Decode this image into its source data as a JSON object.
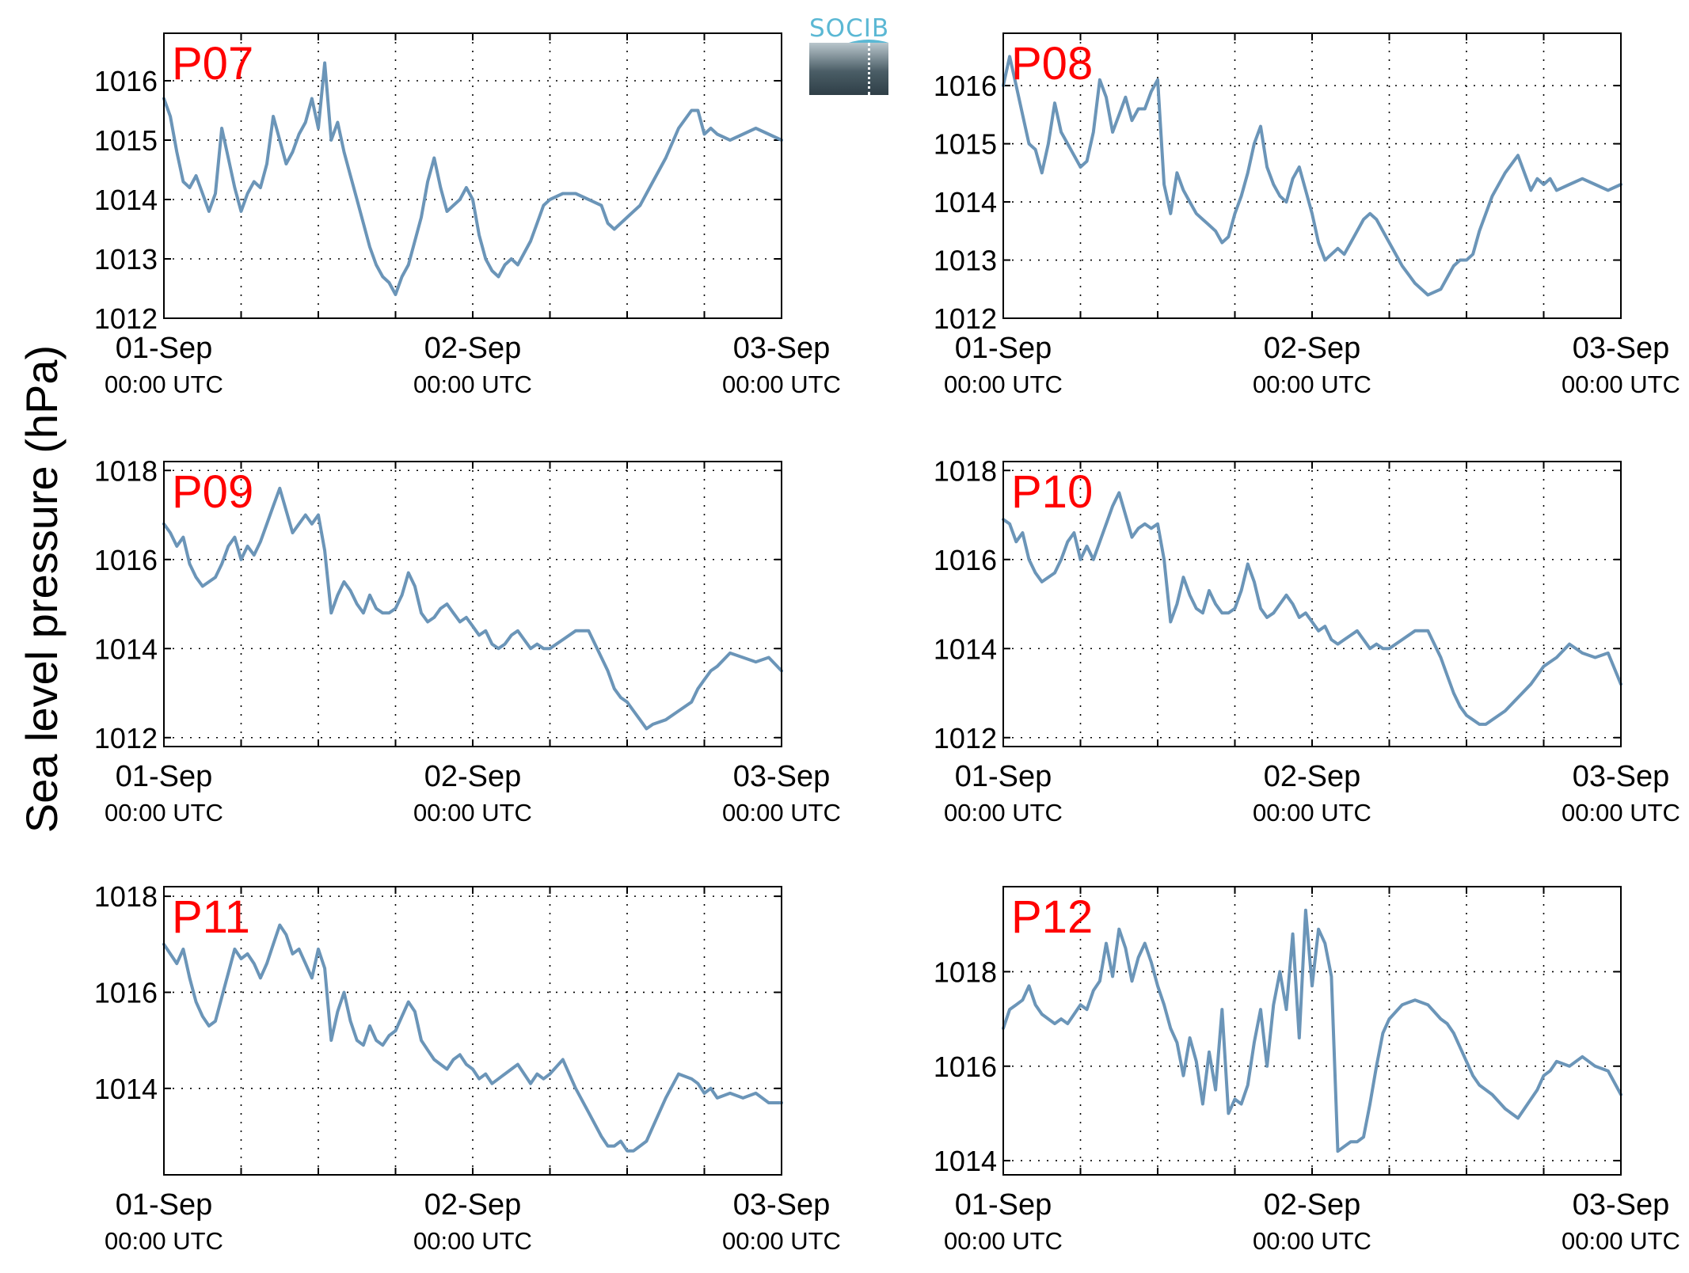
{
  "figure": {
    "ylabel": "Sea level pressure (hPa)",
    "logo_text": "SOCIB",
    "colors": {
      "line": "#6b95b8",
      "panel_label": "#ff0000",
      "axis": "#000000",
      "grid": "#000000"
    }
  },
  "chart_data": [
    {
      "type": "line",
      "title": "P07",
      "x_tick_labels": [
        [
          "01-Sep",
          "00:00 UTC"
        ],
        [
          "02-Sep",
          "00:00 UTC"
        ],
        [
          "03-Sep",
          "00:00 UTC"
        ]
      ],
      "x_range_hours": [
        0,
        48
      ],
      "ylim": [
        1012,
        1016.8
      ],
      "yticks": [
        1012,
        1013,
        1014,
        1015,
        1016
      ],
      "grid": true,
      "x_hours": [
        0,
        0.5,
        1,
        1.5,
        2,
        2.5,
        3,
        3.5,
        4,
        4.5,
        5,
        5.5,
        6,
        6.5,
        7,
        7.5,
        8,
        8.5,
        9,
        9.5,
        10,
        10.5,
        11,
        11.5,
        12,
        12.5,
        13,
        13.5,
        14,
        14.5,
        15,
        15.5,
        16,
        16.5,
        17,
        17.5,
        18,
        18.5,
        19,
        19.5,
        20,
        20.5,
        21,
        21.5,
        22,
        22.5,
        23,
        23.5,
        24,
        24.5,
        25,
        25.5,
        26,
        26.5,
        27,
        27.5,
        28,
        28.5,
        29,
        29.5,
        30,
        31,
        32,
        33,
        34,
        34.5,
        35,
        35.5,
        36,
        36.5,
        37,
        38,
        39,
        40,
        41,
        41.5,
        42,
        42.5,
        43,
        44,
        45,
        46,
        47,
        48
      ],
      "values": [
        1015.7,
        1015.4,
        1014.8,
        1014.3,
        1014.2,
        1014.4,
        1014.1,
        1013.8,
        1014.1,
        1015.2,
        1014.7,
        1014.2,
        1013.8,
        1014.1,
        1014.3,
        1014.2,
        1014.6,
        1015.4,
        1015.0,
        1014.6,
        1014.8,
        1015.1,
        1015.3,
        1015.7,
        1015.2,
        1016.3,
        1015.0,
        1015.3,
        1014.8,
        1014.4,
        1014.0,
        1013.6,
        1013.2,
        1012.9,
        1012.7,
        1012.6,
        1012.4,
        1012.7,
        1012.9,
        1013.3,
        1013.7,
        1014.3,
        1014.7,
        1014.2,
        1013.8,
        1013.9,
        1014.0,
        1014.2,
        1014.0,
        1013.4,
        1013.0,
        1012.8,
        1012.7,
        1012.9,
        1013.0,
        1012.9,
        1013.1,
        1013.3,
        1013.6,
        1013.9,
        1014.0,
        1014.1,
        1014.1,
        1014.0,
        1013.9,
        1013.6,
        1013.5,
        1013.6,
        1013.7,
        1013.8,
        1013.9,
        1014.3,
        1014.7,
        1015.2,
        1015.5,
        1015.5,
        1015.1,
        1015.2,
        1015.1,
        1015.0,
        1015.1,
        1015.2,
        1015.1,
        1015.0
      ]
    },
    {
      "type": "line",
      "title": "P08",
      "x_tick_labels": [
        [
          "01-Sep",
          "00:00 UTC"
        ],
        [
          "02-Sep",
          "00:00 UTC"
        ],
        [
          "03-Sep",
          "00:00 UTC"
        ]
      ],
      "x_range_hours": [
        0,
        48
      ],
      "ylim": [
        1012,
        1016.9
      ],
      "yticks": [
        1012,
        1013,
        1014,
        1015,
        1016
      ],
      "grid": true,
      "x_hours": [
        0,
        0.5,
        1,
        1.5,
        2,
        2.5,
        3,
        3.5,
        4,
        4.5,
        5,
        5.5,
        6,
        6.5,
        7,
        7.5,
        8,
        8.5,
        9,
        9.5,
        10,
        10.5,
        11,
        11.5,
        12,
        12.5,
        13,
        13.5,
        14,
        14.5,
        15,
        15.5,
        16,
        16.5,
        17,
        17.5,
        18,
        18.5,
        19,
        19.5,
        20,
        20.5,
        21,
        21.5,
        22,
        22.5,
        23,
        23.5,
        24,
        24.5,
        25,
        25.5,
        26,
        26.5,
        27,
        27.5,
        28,
        28.5,
        29,
        29.5,
        30,
        31,
        32,
        33,
        34,
        34.5,
        35,
        35.5,
        36,
        36.5,
        37,
        37.5,
        38,
        39,
        40,
        41,
        41.5,
        42,
        42.5,
        43,
        44,
        45,
        46,
        47,
        48
      ],
      "values": [
        1016.0,
        1016.5,
        1016.0,
        1015.5,
        1015.0,
        1014.9,
        1014.5,
        1015.0,
        1015.7,
        1015.2,
        1015.0,
        1014.8,
        1014.6,
        1014.7,
        1015.2,
        1016.1,
        1015.8,
        1015.2,
        1015.5,
        1015.8,
        1015.4,
        1015.6,
        1015.6,
        1015.9,
        1016.1,
        1014.3,
        1013.8,
        1014.5,
        1014.2,
        1014.0,
        1013.8,
        1013.7,
        1013.6,
        1013.5,
        1013.3,
        1013.4,
        1013.8,
        1014.1,
        1014.5,
        1015.0,
        1015.3,
        1014.6,
        1014.3,
        1014.1,
        1014.0,
        1014.4,
        1014.6,
        1014.2,
        1013.8,
        1013.3,
        1013.0,
        1013.1,
        1013.2,
        1013.1,
        1013.3,
        1013.5,
        1013.7,
        1013.8,
        1013.7,
        1013.5,
        1013.3,
        1012.9,
        1012.6,
        1012.4,
        1012.5,
        1012.7,
        1012.9,
        1013.0,
        1013.0,
        1013.1,
        1013.5,
        1013.8,
        1014.1,
        1014.5,
        1014.8,
        1014.2,
        1014.4,
        1014.3,
        1014.4,
        1014.2,
        1014.3,
        1014.4,
        1014.3,
        1014.2,
        1014.3
      ]
    },
    {
      "type": "line",
      "title": "P09",
      "x_tick_labels": [
        [
          "01-Sep",
          "00:00 UTC"
        ],
        [
          "02-Sep",
          "00:00 UTC"
        ],
        [
          "03-Sep",
          "00:00 UTC"
        ]
      ],
      "x_range_hours": [
        0,
        48
      ],
      "ylim": [
        1011.8,
        1018.2
      ],
      "yticks": [
        1012,
        1014,
        1016,
        1018
      ],
      "grid": true,
      "x_hours": [
        0,
        0.5,
        1,
        1.5,
        2,
        2.5,
        3,
        3.5,
        4,
        4.5,
        5,
        5.5,
        6,
        6.5,
        7,
        7.5,
        8,
        8.5,
        9,
        9.5,
        10,
        10.5,
        11,
        11.5,
        12,
        12.5,
        13,
        13.5,
        14,
        14.5,
        15,
        15.5,
        16,
        16.5,
        17,
        17.5,
        18,
        18.5,
        19,
        19.5,
        20,
        20.5,
        21,
        21.5,
        22,
        22.5,
        23,
        23.5,
        24,
        24.5,
        25,
        25.5,
        26,
        26.5,
        27,
        27.5,
        28,
        28.5,
        29,
        29.5,
        30,
        31,
        32,
        33,
        34,
        34.5,
        35,
        35.5,
        36,
        36.5,
        37,
        37.5,
        38,
        39,
        40,
        41,
        41.5,
        42,
        42.5,
        43,
        44,
        45,
        46,
        47,
        48
      ],
      "values": [
        1016.8,
        1016.6,
        1016.3,
        1016.5,
        1015.9,
        1015.6,
        1015.4,
        1015.5,
        1015.6,
        1015.9,
        1016.3,
        1016.5,
        1016.0,
        1016.3,
        1016.1,
        1016.4,
        1016.8,
        1017.2,
        1017.6,
        1017.1,
        1016.6,
        1016.8,
        1017.0,
        1016.8,
        1017.0,
        1016.2,
        1014.8,
        1015.2,
        1015.5,
        1015.3,
        1015.0,
        1014.8,
        1015.2,
        1014.9,
        1014.8,
        1014.8,
        1014.9,
        1015.2,
        1015.7,
        1015.4,
        1014.8,
        1014.6,
        1014.7,
        1014.9,
        1015.0,
        1014.8,
        1014.6,
        1014.7,
        1014.5,
        1014.3,
        1014.4,
        1014.1,
        1014.0,
        1014.1,
        1014.3,
        1014.4,
        1014.2,
        1014.0,
        1014.1,
        1014.0,
        1014.0,
        1014.2,
        1014.4,
        1014.4,
        1013.8,
        1013.5,
        1013.1,
        1012.9,
        1012.8,
        1012.6,
        1012.4,
        1012.2,
        1012.3,
        1012.4,
        1012.6,
        1012.8,
        1013.1,
        1013.3,
        1013.5,
        1013.6,
        1013.9,
        1013.8,
        1013.7,
        1013.8,
        1013.5
      ]
    },
    {
      "type": "line",
      "title": "P10",
      "x_tick_labels": [
        [
          "01-Sep",
          "00:00 UTC"
        ],
        [
          "02-Sep",
          "00:00 UTC"
        ],
        [
          "03-Sep",
          "00:00 UTC"
        ]
      ],
      "x_range_hours": [
        0,
        48
      ],
      "ylim": [
        1011.8,
        1018.2
      ],
      "yticks": [
        1012,
        1014,
        1016,
        1018
      ],
      "grid": true,
      "x_hours": [
        0,
        0.5,
        1,
        1.5,
        2,
        2.5,
        3,
        3.5,
        4,
        4.5,
        5,
        5.5,
        6,
        6.5,
        7,
        7.5,
        8,
        8.5,
        9,
        9.5,
        10,
        10.5,
        11,
        11.5,
        12,
        12.5,
        13,
        13.5,
        14,
        14.5,
        15,
        15.5,
        16,
        16.5,
        17,
        17.5,
        18,
        18.5,
        19,
        19.5,
        20,
        20.5,
        21,
        21.5,
        22,
        22.5,
        23,
        23.5,
        24,
        24.5,
        25,
        25.5,
        26,
        26.5,
        27,
        27.5,
        28,
        28.5,
        29,
        29.5,
        30,
        31,
        32,
        33,
        34,
        34.5,
        35,
        35.5,
        36,
        36.5,
        37,
        37.5,
        38,
        39,
        40,
        41,
        41.5,
        42,
        42.5,
        43,
        44,
        45,
        46,
        47,
        48
      ],
      "values": [
        1016.9,
        1016.8,
        1016.4,
        1016.6,
        1016.0,
        1015.7,
        1015.5,
        1015.6,
        1015.7,
        1016.0,
        1016.4,
        1016.6,
        1016.0,
        1016.3,
        1016.0,
        1016.4,
        1016.8,
        1017.2,
        1017.5,
        1017.0,
        1016.5,
        1016.7,
        1016.8,
        1016.7,
        1016.8,
        1016.0,
        1014.6,
        1015.0,
        1015.6,
        1015.2,
        1014.9,
        1014.8,
        1015.3,
        1015.0,
        1014.8,
        1014.8,
        1014.9,
        1015.3,
        1015.9,
        1015.5,
        1014.9,
        1014.7,
        1014.8,
        1015.0,
        1015.2,
        1015.0,
        1014.7,
        1014.8,
        1014.6,
        1014.4,
        1014.5,
        1014.2,
        1014.1,
        1014.2,
        1014.3,
        1014.4,
        1014.2,
        1014.0,
        1014.1,
        1014.0,
        1014.0,
        1014.2,
        1014.4,
        1014.4,
        1013.8,
        1013.4,
        1013.0,
        1012.7,
        1012.5,
        1012.4,
        1012.3,
        1012.3,
        1012.4,
        1012.6,
        1012.9,
        1013.2,
        1013.4,
        1013.6,
        1013.7,
        1013.8,
        1014.1,
        1013.9,
        1013.8,
        1013.9,
        1013.2
      ]
    },
    {
      "type": "line",
      "title": "P11",
      "x_tick_labels": [
        [
          "01-Sep",
          "00:00 UTC"
        ],
        [
          "02-Sep",
          "00:00 UTC"
        ],
        [
          "03-Sep",
          "00:00 UTC"
        ]
      ],
      "x_range_hours": [
        0,
        48
      ],
      "ylim": [
        1012.2,
        1018.2
      ],
      "yticks": [
        1014,
        1016,
        1018
      ],
      "grid": true,
      "x_hours": [
        0,
        0.5,
        1,
        1.5,
        2,
        2.5,
        3,
        3.5,
        4,
        4.5,
        5,
        5.5,
        6,
        6.5,
        7,
        7.5,
        8,
        8.5,
        9,
        9.5,
        10,
        10.5,
        11,
        11.5,
        12,
        12.5,
        13,
        13.5,
        14,
        14.5,
        15,
        15.5,
        16,
        16.5,
        17,
        17.5,
        18,
        18.5,
        19,
        19.5,
        20,
        20.5,
        21,
        21.5,
        22,
        22.5,
        23,
        23.5,
        24,
        24.5,
        25,
        25.5,
        26,
        26.5,
        27,
        27.5,
        28,
        28.5,
        29,
        29.5,
        30,
        31,
        32,
        33,
        34,
        34.5,
        35,
        35.5,
        36,
        36.5,
        37,
        37.5,
        38,
        39,
        40,
        41,
        41.5,
        42,
        42.5,
        43,
        44,
        45,
        46,
        47,
        48
      ],
      "values": [
        1017.0,
        1016.8,
        1016.6,
        1016.9,
        1016.3,
        1015.8,
        1015.5,
        1015.3,
        1015.4,
        1015.9,
        1016.4,
        1016.9,
        1016.7,
        1016.8,
        1016.6,
        1016.3,
        1016.6,
        1017.0,
        1017.4,
        1017.2,
        1016.8,
        1016.9,
        1016.6,
        1016.3,
        1016.9,
        1016.5,
        1015.0,
        1015.6,
        1016.0,
        1015.4,
        1015.0,
        1014.9,
        1015.3,
        1015.0,
        1014.9,
        1015.1,
        1015.2,
        1015.5,
        1015.8,
        1015.6,
        1015.0,
        1014.8,
        1014.6,
        1014.5,
        1014.4,
        1014.6,
        1014.7,
        1014.5,
        1014.4,
        1014.2,
        1014.3,
        1014.1,
        1014.2,
        1014.3,
        1014.4,
        1014.5,
        1014.3,
        1014.1,
        1014.3,
        1014.2,
        1014.3,
        1014.6,
        1014.0,
        1013.5,
        1013.0,
        1012.8,
        1012.8,
        1012.9,
        1012.7,
        1012.7,
        1012.8,
        1012.9,
        1013.2,
        1013.8,
        1014.3,
        1014.2,
        1014.1,
        1013.9,
        1014.0,
        1013.8,
        1013.9,
        1013.8,
        1013.9,
        1013.7,
        1013.7
      ]
    },
    {
      "type": "line",
      "title": "P12",
      "x_tick_labels": [
        [
          "01-Sep",
          "00:00 UTC"
        ],
        [
          "02-Sep",
          "00:00 UTC"
        ],
        [
          "03-Sep",
          "00:00 UTC"
        ]
      ],
      "x_range_hours": [
        0,
        48
      ],
      "ylim": [
        1013.7,
        1019.8
      ],
      "yticks": [
        1014,
        1016,
        1018
      ],
      "grid": true,
      "x_hours": [
        0,
        0.5,
        1,
        1.5,
        2,
        2.5,
        3,
        3.5,
        4,
        4.5,
        5,
        5.5,
        6,
        6.5,
        7,
        7.5,
        8,
        8.5,
        9,
        9.5,
        10,
        10.5,
        11,
        11.5,
        12,
        12.5,
        13,
        13.5,
        14,
        14.5,
        15,
        15.5,
        16,
        16.5,
        17,
        17.5,
        18,
        18.5,
        19,
        19.5,
        20,
        20.5,
        21,
        21.5,
        22,
        22.5,
        23,
        23.5,
        24,
        24.5,
        25,
        25.5,
        26,
        26.5,
        27,
        27.5,
        28,
        28.5,
        29,
        29.5,
        30,
        31,
        32,
        33,
        34,
        34.5,
        35,
        35.5,
        36,
        36.5,
        37,
        37.5,
        38,
        39,
        40,
        41,
        41.5,
        42,
        42.5,
        43,
        44,
        45,
        46,
        47,
        48
      ],
      "values": [
        1016.8,
        1017.2,
        1017.3,
        1017.4,
        1017.7,
        1017.3,
        1017.1,
        1017.0,
        1016.9,
        1017.0,
        1016.9,
        1017.1,
        1017.3,
        1017.2,
        1017.6,
        1017.8,
        1018.6,
        1017.9,
        1018.9,
        1018.5,
        1017.8,
        1018.3,
        1018.6,
        1018.2,
        1017.7,
        1017.3,
        1016.8,
        1016.5,
        1015.8,
        1016.6,
        1016.1,
        1015.2,
        1016.3,
        1015.5,
        1017.2,
        1015.0,
        1015.3,
        1015.2,
        1015.6,
        1016.5,
        1017.2,
        1016.0,
        1017.3,
        1018.0,
        1017.2,
        1018.8,
        1016.6,
        1019.3,
        1017.7,
        1018.9,
        1018.6,
        1017.9,
        1014.2,
        1014.3,
        1014.4,
        1014.4,
        1014.5,
        1015.2,
        1016.0,
        1016.7,
        1017.0,
        1017.3,
        1017.4,
        1017.3,
        1017.0,
        1016.9,
        1016.7,
        1016.4,
        1016.1,
        1015.8,
        1015.6,
        1015.5,
        1015.4,
        1015.1,
        1014.9,
        1015.3,
        1015.5,
        1015.8,
        1015.9,
        1016.1,
        1016.0,
        1016.2,
        1016.0,
        1015.9,
        1015.4
      ]
    }
  ]
}
